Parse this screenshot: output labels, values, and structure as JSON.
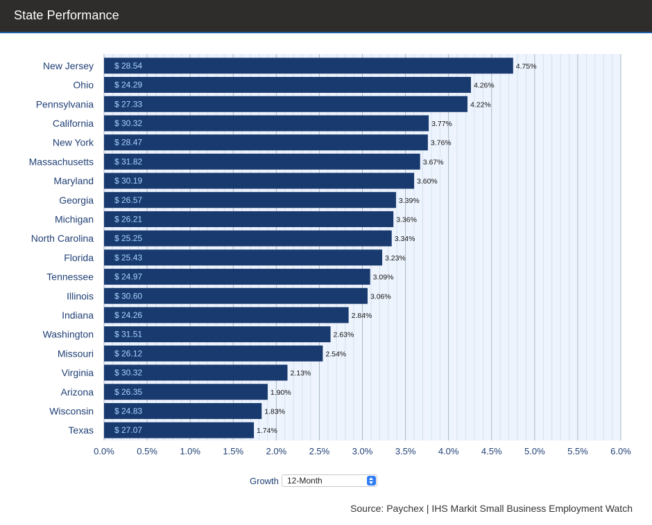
{
  "header": {
    "title": "State Performance"
  },
  "controls": {
    "growth_label": "Growth",
    "growth_period": "12-Month"
  },
  "source": "Source: Paychex | IHS Markit Small Business Employment Watch",
  "colors": {
    "bar": "#193a6e",
    "bar_label": "#a9d4ff",
    "category_label": "#1f3f74",
    "plot_bg": "#eef4fd",
    "grid_major": "#a9b8c7",
    "grid_minor": "#d3e1f0",
    "header_bg": "#2f2d2c"
  },
  "chart_data": {
    "type": "bar",
    "orientation": "horizontal",
    "categories": [
      "New Jersey",
      "Ohio",
      "Pennsylvania",
      "California",
      "New York",
      "Massachusetts",
      "Maryland",
      "Georgia",
      "Michigan",
      "North Carolina",
      "Florida",
      "Tennessee",
      "Illinois",
      "Indiana",
      "Washington",
      "Missouri",
      "Virginia",
      "Arizona",
      "Wisconsin",
      "Texas"
    ],
    "series": [
      {
        "values": [
          4.75,
          4.26,
          4.22,
          3.77,
          3.76,
          3.67,
          3.6,
          3.39,
          3.36,
          3.34,
          3.23,
          3.09,
          3.06,
          2.84,
          2.63,
          2.54,
          2.13,
          1.9,
          1.83,
          1.74
        ]
      }
    ],
    "value_labels": [
      "4.75%",
      "4.26%",
      "4.22%",
      "3.77%",
      "3.76%",
      "3.67%",
      "3.60%",
      "3.39%",
      "3.36%",
      "3.34%",
      "3.23%",
      "3.09%",
      "3.06%",
      "2.84%",
      "2.63%",
      "2.54%",
      "2.13%",
      "1.90%",
      "1.83%",
      "1.74%"
    ],
    "bar_labels": [
      "$ 28.54",
      "$ 24.29",
      "$ 27.33",
      "$ 30.32",
      "$ 28.47",
      "$ 31.82",
      "$ 30.19",
      "$ 26.57",
      "$ 26.21",
      "$ 25.25",
      "$ 25.43",
      "$ 24.97",
      "$ 30.60",
      "$ 24.26",
      "$ 31.51",
      "$ 26.12",
      "$ 30.32",
      "$ 26.35",
      "$ 24.83",
      "$ 27.07"
    ],
    "xlim": [
      0,
      6
    ],
    "x_ticks": [
      0,
      0.5,
      1,
      1.5,
      2,
      2.5,
      3,
      3.5,
      4,
      4.5,
      5,
      5.5,
      6
    ],
    "x_tick_labels": [
      "0.0%",
      "0.5%",
      "1.0%",
      "1.5%",
      "2.0%",
      "2.5%",
      "3.0%",
      "3.5%",
      "4.0%",
      "4.5%",
      "5.0%",
      "5.5%",
      "6.0%"
    ],
    "minor_step": 0.1,
    "grid": true,
    "title": "",
    "xlabel": "",
    "ylabel": ""
  }
}
